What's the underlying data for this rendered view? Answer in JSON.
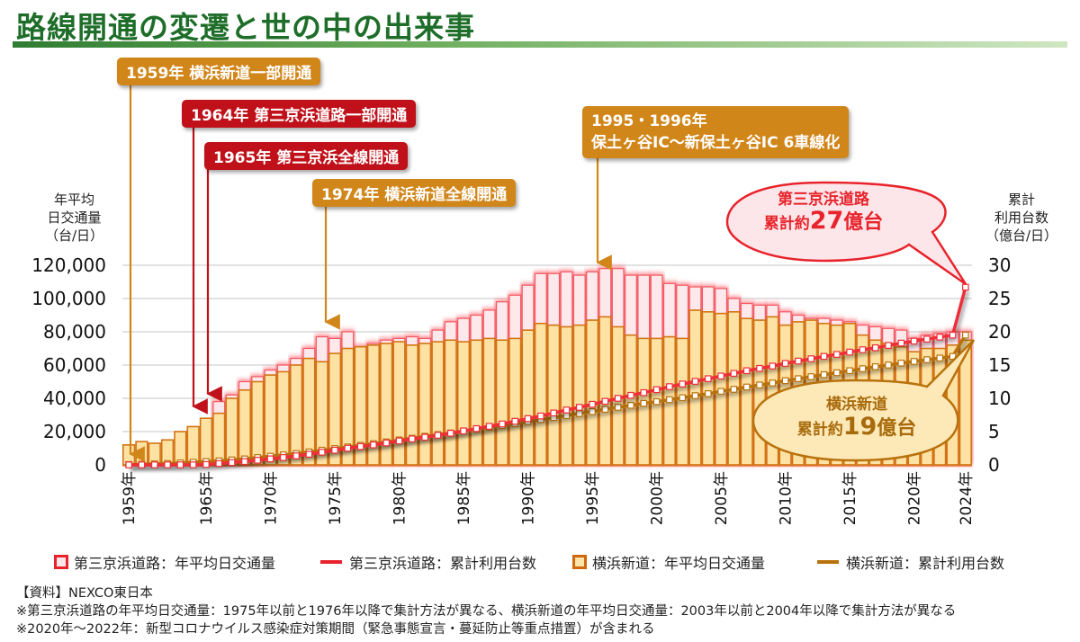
{
  "title": "路線開通の変遷と世の中の出来事",
  "callouts": [
    {
      "id": "c1959",
      "text": "1959年 横浜新道一部開通",
      "year": 1959,
      "color": "orange"
    },
    {
      "id": "c1964",
      "text": "1964年 第三京浜道路一部開通",
      "year": 1964,
      "color": "red"
    },
    {
      "id": "c1965",
      "text": "1965年 第三京浜全線開通",
      "year": 1965,
      "color": "red"
    },
    {
      "id": "c1974",
      "text": "1974年 横浜新道全線開通",
      "year": 1974,
      "color": "orange"
    },
    {
      "id": "c1995",
      "line1": "1995・1996年",
      "line2": "保土ヶ谷IC～新保土ヶ谷IC 6車線化",
      "year": 1995,
      "color": "orange"
    }
  ],
  "bubbles": {
    "daisan": {
      "line1": "第三京浜道路",
      "prefix": "累計約",
      "number": "27",
      "suffix": "億台"
    },
    "yokohama": {
      "line1": "横浜新道",
      "prefix": "累計約",
      "number": "19",
      "suffix": "億台"
    }
  },
  "left_axis_title": [
    "年平均",
    "日交通量",
    "（台/日）"
  ],
  "right_axis_title": [
    "累計",
    "利用台数",
    "（億台/日）"
  ],
  "legend": [
    {
      "label": "第三京浜道路：年平均日交通量",
      "type": "box",
      "color": "#e8232b",
      "fill": "#fde6ea"
    },
    {
      "label": "第三京浜道路：累計利用台数",
      "type": "line",
      "color": "#e8232b"
    },
    {
      "label": "横浜新道：年平均日交通量",
      "type": "box",
      "color": "#d0680f",
      "fill": "#fde4a8"
    },
    {
      "label": "横浜新道：累計利用台数",
      "type": "line",
      "color": "#b8720c"
    }
  ],
  "notes": [
    "【資料】NEXCO東日本",
    "※第三京浜道路の年平均日交通量：1975年以前と1976年以降で集計方法が異なる、横浜新道の年平均日交通量：2003年以前と2004年以降で集計方法が異なる",
    "※2020年～2022年：新型コロナウイルス感染症対策期間（緊急事態宣言・蔓延防止等重点措置）が含まれる"
  ],
  "chart_data": {
    "type": "bar",
    "title": "路線開通の変遷と世の中の出来事",
    "xlabel": "",
    "ylabel": "年平均日交通量（台/日）",
    "y2label": "累計利用台数（億台/日）",
    "ylim": [
      0,
      120000
    ],
    "y2lim": [
      0,
      30
    ],
    "yticks": [
      "0",
      "20,000",
      "40,000",
      "60,000",
      "80,000",
      "100,000",
      "120,000"
    ],
    "y2ticks": [
      "0",
      "5",
      "10",
      "15",
      "20",
      "25",
      "30"
    ],
    "xtick_labels": [
      "1959年",
      "1965年",
      "1970年",
      "1975年",
      "1980年",
      "1985年",
      "1990年",
      "1995年",
      "2000年",
      "2005年",
      "2010年",
      "2015年",
      "2020年",
      "2024年"
    ],
    "xtick_years": [
      1959,
      1965,
      1970,
      1975,
      1980,
      1985,
      1990,
      1995,
      2000,
      2005,
      2010,
      2015,
      2020,
      2024
    ],
    "grid": true,
    "legend_position": "bottom",
    "x_start": 1959,
    "x": [
      1959,
      1960,
      1961,
      1962,
      1963,
      1964,
      1965,
      1966,
      1967,
      1968,
      1969,
      1970,
      1971,
      1972,
      1973,
      1974,
      1975,
      1976,
      1977,
      1978,
      1979,
      1980,
      1981,
      1982,
      1983,
      1984,
      1985,
      1986,
      1987,
      1988,
      1989,
      1990,
      1991,
      1992,
      1993,
      1994,
      1995,
      1996,
      1997,
      1998,
      1999,
      2000,
      2001,
      2002,
      2003,
      2004,
      2005,
      2006,
      2007,
      2008,
      2009,
      2010,
      2011,
      2012,
      2013,
      2014,
      2015,
      2016,
      2017,
      2018,
      2019,
      2020,
      2021,
      2022,
      2023,
      2024
    ],
    "series": [
      {
        "name": "第三京浜道路：年平均日交通量",
        "kind": "bar",
        "values": [
          null,
          null,
          null,
          null,
          null,
          null,
          14000,
          38000,
          42000,
          50000,
          53000,
          57000,
          60000,
          64000,
          70000,
          77000,
          76000,
          80000,
          71000,
          73000,
          75000,
          76000,
          77000,
          76000,
          81000,
          86000,
          88000,
          90000,
          93000,
          98000,
          102000,
          108000,
          115000,
          115000,
          116000,
          114000,
          116000,
          118000,
          118000,
          114000,
          114000,
          114000,
          109000,
          108000,
          107000,
          107000,
          106000,
          100000,
          97000,
          96000,
          96000,
          92000,
          90000,
          88000,
          88000,
          87000,
          86000,
          84000,
          83000,
          82000,
          81000,
          76000,
          78000,
          79000,
          80000,
          80000
        ]
      },
      {
        "name": "横浜新道：年平均日交通量",
        "kind": "bar",
        "values": [
          12000,
          14000,
          13000,
          15000,
          20000,
          23000,
          28000,
          31000,
          40000,
          45000,
          50000,
          54000,
          56000,
          60000,
          64000,
          62000,
          67000,
          70000,
          71000,
          72000,
          73000,
          74000,
          72000,
          73000,
          74000,
          75000,
          74000,
          75000,
          76000,
          75000,
          76000,
          81000,
          85000,
          84000,
          83000,
          84000,
          87000,
          89000,
          83000,
          78000,
          76000,
          76000,
          77000,
          76000,
          93000,
          92000,
          91000,
          92000,
          88000,
          87000,
          89000,
          84000,
          86000,
          87000,
          85000,
          84000,
          85000,
          78000,
          75000,
          73000,
          71000,
          68000,
          70000,
          70000,
          72000,
          75000
        ]
      },
      {
        "name": "第三京浜道路：累計利用台数",
        "kind": "line",
        "axis": "right",
        "values": [
          0,
          0,
          0,
          0,
          0,
          0,
          0.05,
          0.2,
          0.35,
          0.5,
          0.7,
          0.9,
          1.1,
          1.35,
          1.6,
          1.9,
          2.2,
          2.5,
          2.75,
          3.0,
          3.3,
          3.6,
          3.9,
          4.15,
          4.45,
          4.75,
          5.1,
          5.45,
          5.8,
          6.15,
          6.55,
          6.95,
          7.35,
          7.8,
          8.25,
          8.65,
          9.1,
          9.55,
          10.0,
          10.45,
          10.85,
          11.3,
          11.75,
          12.15,
          12.55,
          12.95,
          13.35,
          13.75,
          14.15,
          14.5,
          14.85,
          15.25,
          15.6,
          15.95,
          16.3,
          16.6,
          16.95,
          17.3,
          17.6,
          17.95,
          18.3,
          18.6,
          18.9,
          19.2,
          19.5,
          26.7
        ]
      },
      {
        "name": "横浜新道：累計利用台数",
        "kind": "line",
        "axis": "right",
        "values": [
          0.05,
          0.1,
          0.15,
          0.2,
          0.3,
          0.4,
          0.5,
          0.6,
          0.75,
          0.9,
          1.1,
          1.3,
          1.5,
          1.7,
          1.95,
          2.2,
          2.45,
          2.7,
          2.95,
          3.2,
          3.45,
          3.75,
          4.0,
          4.3,
          4.55,
          4.8,
          5.1,
          5.35,
          5.65,
          5.9,
          6.2,
          6.5,
          6.8,
          7.1,
          7.4,
          7.7,
          8.0,
          8.35,
          8.65,
          8.95,
          9.25,
          9.5,
          9.8,
          10.1,
          10.4,
          10.7,
          11.05,
          11.35,
          11.7,
          12.0,
          12.3,
          12.65,
          12.95,
          13.25,
          13.55,
          13.85,
          14.15,
          14.45,
          14.75,
          15.0,
          15.3,
          15.55,
          15.8,
          16.05,
          16.3,
          19.5
        ]
      }
    ],
    "annotations": [
      "1959年 横浜新道一部開通",
      "1964年 第三京浜道路一部開通",
      "1965年 第三京浜全線開通",
      "1974年 横浜新道全線開通",
      "1995・1996年 保土ヶ谷IC～新保土ヶ谷IC 6車線化",
      "第三京浜道路 累計約27億台",
      "横浜新道 累計約19億台"
    ]
  }
}
